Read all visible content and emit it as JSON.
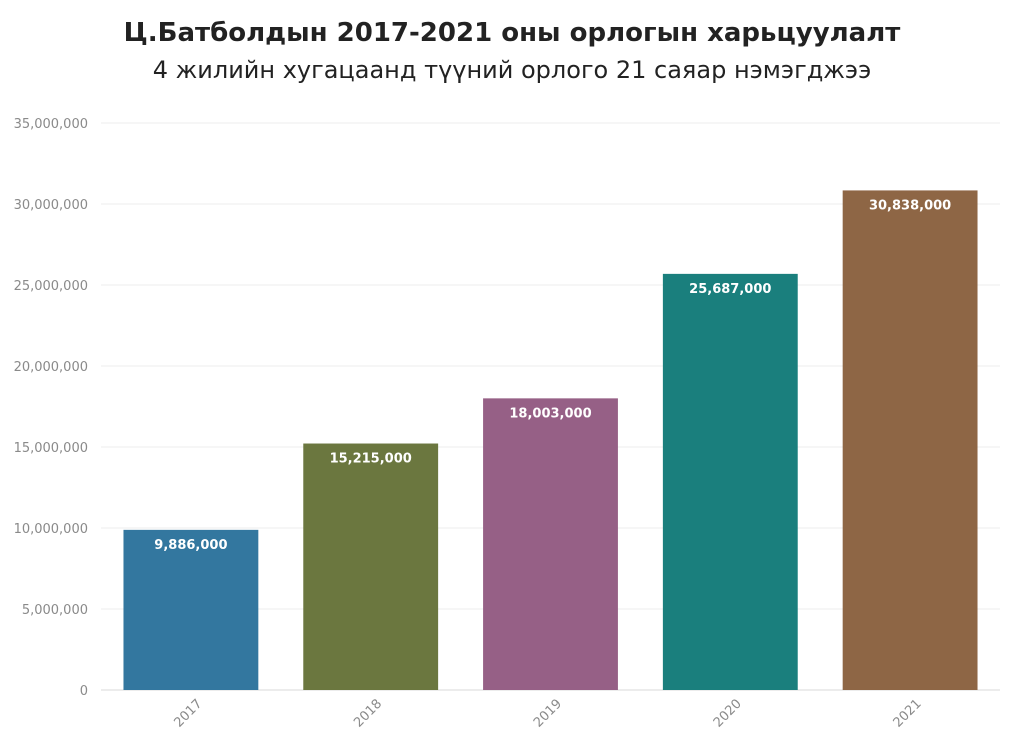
{
  "chart_data": {
    "type": "bar",
    "title": "Ц.Батболдын 2017-2021 оны орлогын харьцуулалт",
    "subtitle": "4 жилийн хугацаанд түүний орлого 21 саяар нэмэгджээ",
    "xlabel": "",
    "ylabel": "",
    "categories": [
      "2017",
      "2018",
      "2019",
      "2020",
      "2021"
    ],
    "values": [
      9886000,
      15215000,
      18003000,
      25687000,
      30838000
    ],
    "value_labels": [
      "9,886,000",
      "15,215,000",
      "18,003,000",
      "25,687,000",
      "30,838,000"
    ],
    "colors": [
      "#33779f",
      "#6b773f",
      "#966086",
      "#1a7f7d",
      "#8e6645"
    ],
    "ylim": [
      0,
      35000000
    ],
    "yticks": [
      0,
      5000000,
      10000000,
      15000000,
      20000000,
      25000000,
      30000000,
      35000000
    ],
    "ytick_labels": [
      "0",
      "5,000,000",
      "10,000,000",
      "15,000,000",
      "20,000,000",
      "25,000,000",
      "30,000,000",
      "35,000,000"
    ],
    "grid": true,
    "legend": "none"
  }
}
